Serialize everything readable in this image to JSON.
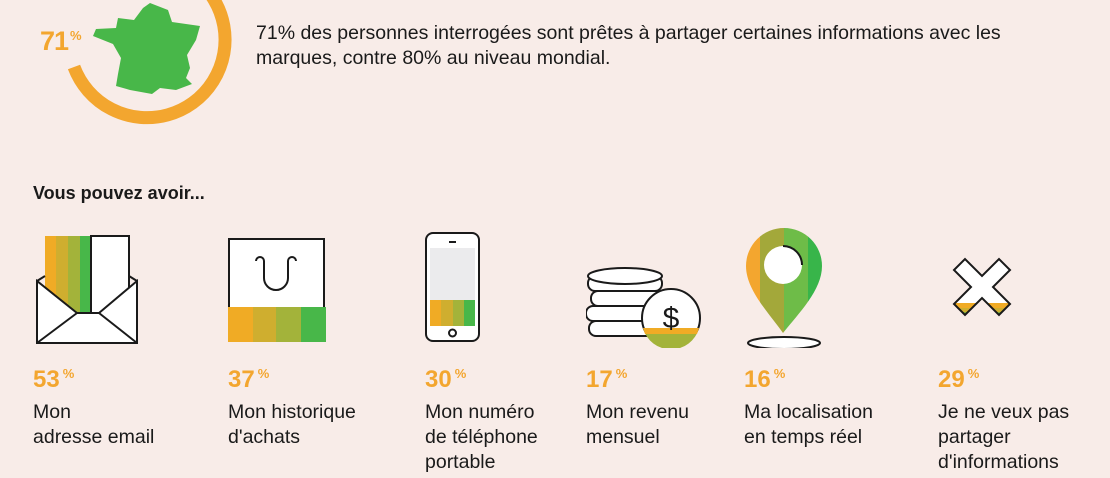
{
  "colors": {
    "background": "#f8ece8",
    "orange": "#f3a62f",
    "green": "#48b749",
    "olive": "#a3b33a",
    "mustard": "#cfae2f"
  },
  "headline": {
    "percent": "71",
    "percent_sign": "%",
    "ring_fill_percent": 71,
    "icon": "france-map-icon",
    "text": "71% des personnes interrogées sont prêtes à partager certaines informations avec les marques, contre 80% au niveau mondial."
  },
  "section_title": "Vous pouvez avoir...",
  "items": [
    {
      "icon": "envelope-icon",
      "percent": "53",
      "sign": "%",
      "label": "Mon\nadresse email"
    },
    {
      "icon": "shopping-bag-icon",
      "percent": "37",
      "sign": "%",
      "label": "Mon historique\nd'achats"
    },
    {
      "icon": "smartphone-icon",
      "percent": "30",
      "sign": "%",
      "label": "Mon numéro\nde téléphone\nportable"
    },
    {
      "icon": "coins-icon",
      "percent": "17",
      "sign": "%",
      "label": "Mon revenu\nmensuel"
    },
    {
      "icon": "location-pin-icon",
      "percent": "16",
      "sign": "%",
      "label": "Ma localisation\nen temps réel"
    },
    {
      "icon": "cross-icon",
      "percent": "29",
      "sign": "%",
      "label": "Je ne veux pas\npartager\nd'informations"
    }
  ]
}
